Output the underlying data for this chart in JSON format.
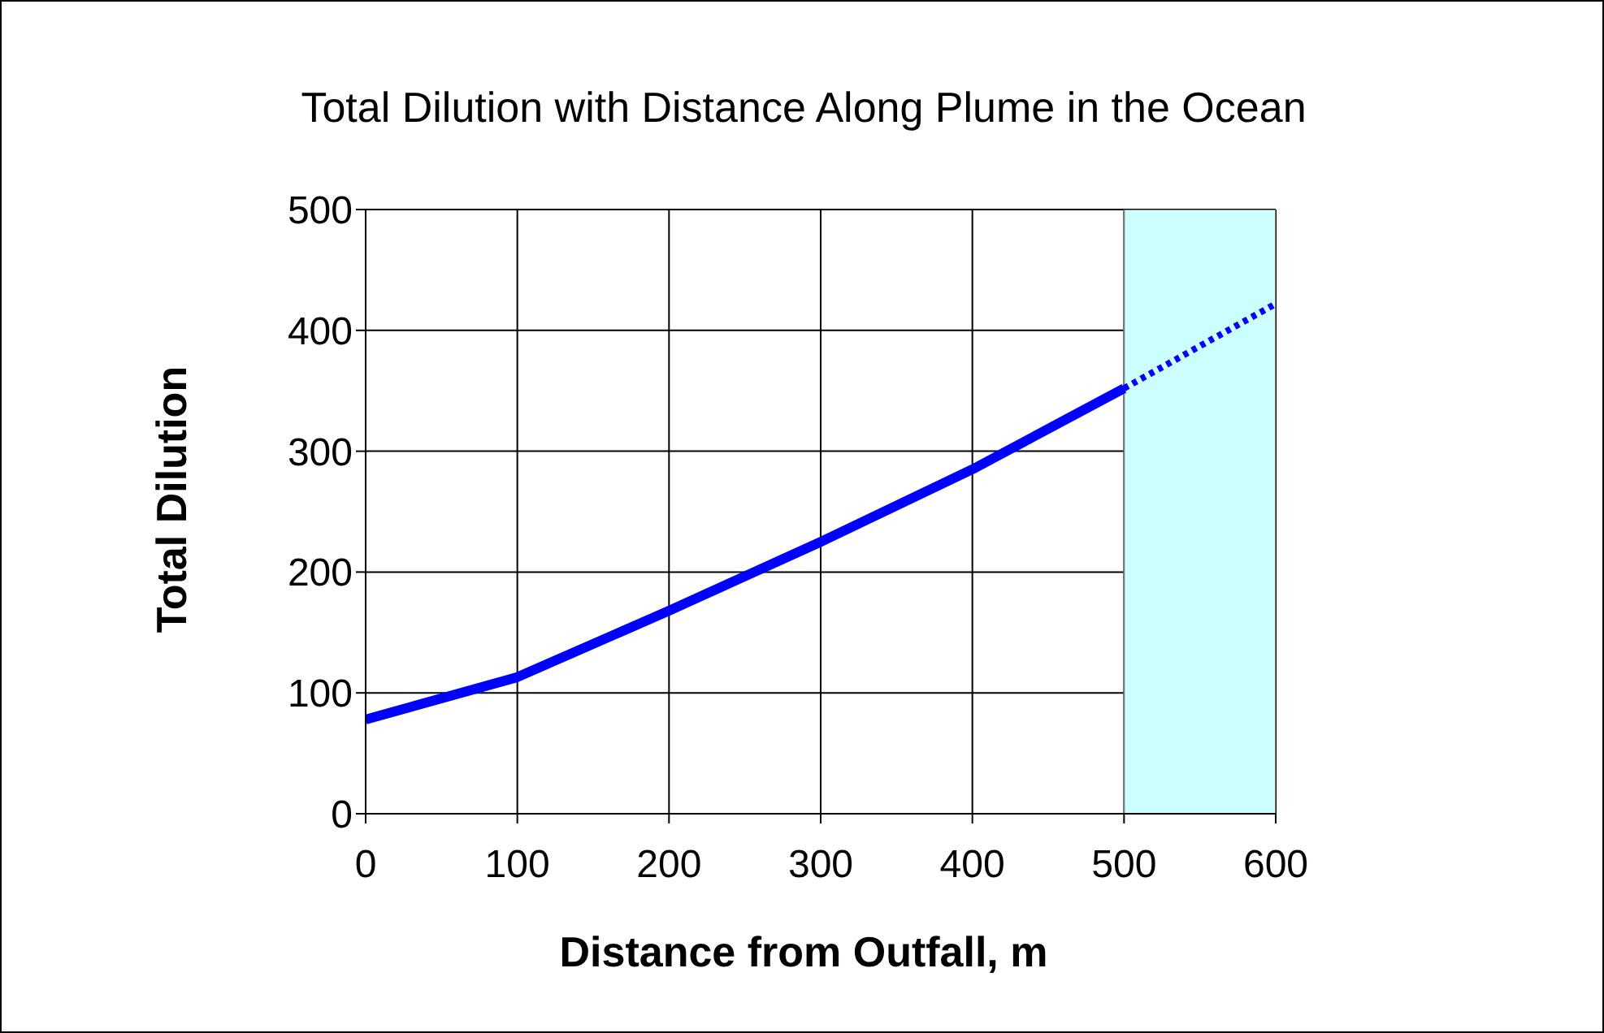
{
  "chart_data": {
    "type": "line",
    "title": "Total Dilution with Distance Along Plume in the Ocean",
    "xlabel": "Distance from Outfall, m",
    "ylabel": "Total Dilution",
    "series": [
      {
        "x": [
          0,
          100,
          200,
          300,
          400,
          500
        ],
        "values": [
          78,
          113,
          168,
          225,
          285,
          352
        ],
        "color": "#0000ff",
        "line_style": "solid"
      },
      {
        "x": [
          500,
          600
        ],
        "values": [
          352,
          422
        ],
        "color": "#0000ff",
        "line_style": "dotted"
      }
    ],
    "bands": [
      {
        "axis": "x",
        "from": 500,
        "to": 600,
        "color": "#ccffff"
      }
    ],
    "xlim": [
      0,
      600
    ],
    "xticks": [
      0,
      100,
      200,
      300,
      400,
      500,
      600
    ],
    "ylim": [
      0,
      500
    ],
    "yticks": [
      0,
      100,
      200,
      300,
      400,
      500
    ],
    "grid": true,
    "legend": false,
    "marker": "none"
  }
}
